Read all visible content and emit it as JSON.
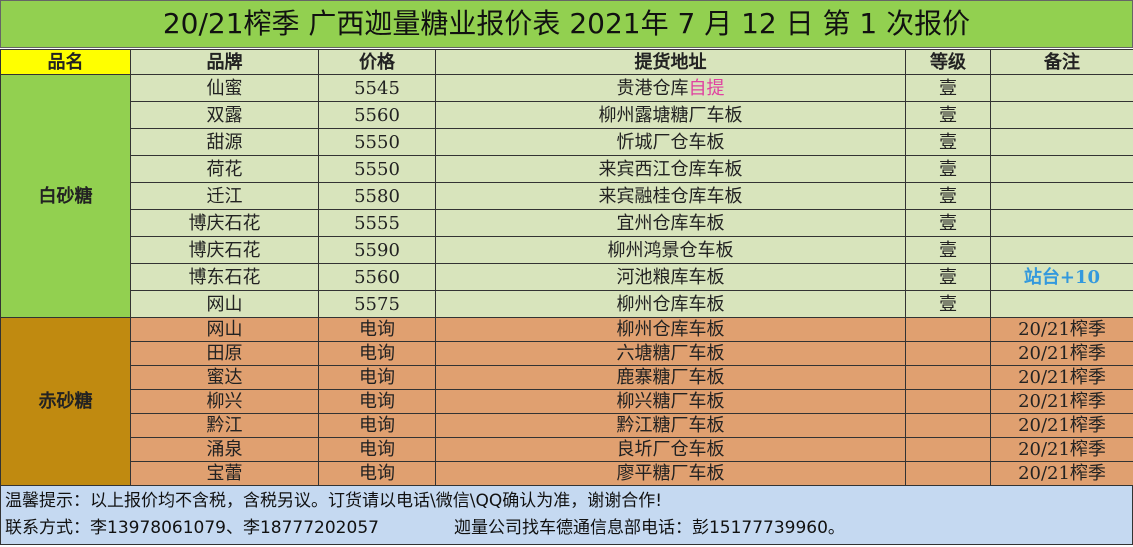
{
  "title": "20/21榨季  广西迦量糖业报价表 2021年 7 月 12 日 第 1 次报价",
  "headers": [
    "品名",
    "品牌",
    "价格",
    "提货地址",
    "等级",
    "备注"
  ],
  "white": {
    "category": "白砂糖",
    "rows": [
      {
        "brand": "仙蜜",
        "price": "5545",
        "addr": "贵港仓库",
        "addr_extra": "自提",
        "grade": "壹",
        "note": ""
      },
      {
        "brand": "双露",
        "price": "5560",
        "addr": "柳州露塘糖厂车板",
        "addr_extra": "",
        "grade": "壹",
        "note": ""
      },
      {
        "brand": "甜源",
        "price": "5550",
        "addr": "忻城厂仓车板",
        "addr_extra": "",
        "grade": "壹",
        "note": ""
      },
      {
        "brand": "荷花",
        "price": "5550",
        "addr": "来宾西江仓库车板",
        "addr_extra": "",
        "grade": "壹",
        "note": ""
      },
      {
        "brand": "迁江",
        "price": "5580",
        "addr": "来宾融桂仓库车板",
        "addr_extra": "",
        "grade": "壹",
        "note": ""
      },
      {
        "brand": "博庆石花",
        "price": "5555",
        "addr": "宜州仓库车板",
        "addr_extra": "",
        "grade": "壹",
        "note": ""
      },
      {
        "brand": "博庆石花",
        "price": "5590",
        "addr": "柳州鸿景仓车板",
        "addr_extra": "",
        "grade": "壹",
        "note": ""
      },
      {
        "brand": "博东石花",
        "price": "5560",
        "addr": "河池粮库车板",
        "addr_extra": "",
        "grade": "壹",
        "note": "站台+10"
      },
      {
        "brand": "网山",
        "price": "5575",
        "addr": "柳州仓库车板",
        "addr_extra": "",
        "grade": "壹",
        "note": ""
      }
    ]
  },
  "red": {
    "category": "赤砂糖",
    "rows": [
      {
        "brand": "网山",
        "price": "电询",
        "addr": "柳州仓库车板",
        "grade": "",
        "note": "20/21榨季"
      },
      {
        "brand": "田原",
        "price": "电询",
        "addr": "六塘糖厂车板",
        "grade": "",
        "note": "20/21榨季"
      },
      {
        "brand": "蜜达",
        "price": "电询",
        "addr": "鹿寨糖厂车板",
        "grade": "",
        "note": "20/21榨季"
      },
      {
        "brand": "柳兴",
        "price": "电询",
        "addr": "柳兴糖厂车板",
        "grade": "",
        "note": "20/21榨季"
      },
      {
        "brand": "黔江",
        "price": "电询",
        "addr": "黔江糖厂车板",
        "grade": "",
        "note": "20/21榨季"
      },
      {
        "brand": "涌泉",
        "price": "电询",
        "addr": "良圻厂仓车板",
        "grade": "",
        "note": "20/21榨季"
      },
      {
        "brand": "宝蕾",
        "price": "电询",
        "addr": "廖平糖厂车板",
        "grade": "",
        "note": "20/21榨季"
      }
    ]
  },
  "footer": {
    "line1": "温馨提示：以上报价均不含税，含税另议。订货请以电话\\微信\\QQ确认为准，谢谢合作!",
    "contact": "联系方式：李13978061079、李18777202057",
    "company": "迦量公司找车德通信息部电话：彭15177739960。"
  }
}
